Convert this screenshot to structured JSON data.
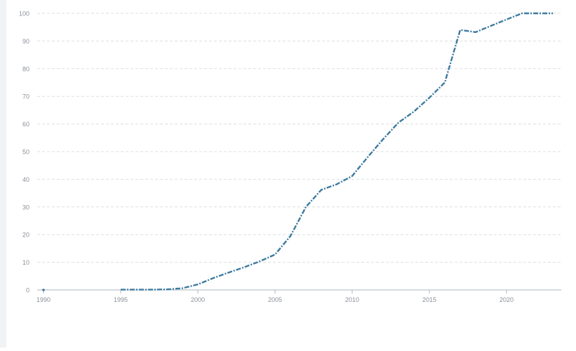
{
  "chart_data": {
    "type": "line",
    "title": "",
    "xlabel": "",
    "ylabel": "",
    "xlim": [
      1990,
      2023
    ],
    "ylim": [
      0,
      100
    ],
    "x_ticks": [
      "1990",
      "1995",
      "2000",
      "2005",
      "2010",
      "2015",
      "2020"
    ],
    "y_ticks": [
      "0",
      "10",
      "20",
      "30",
      "40",
      "50",
      "60",
      "70",
      "80",
      "90",
      "100"
    ],
    "grid": "horizontal-dashed",
    "line_style": "dash-dot",
    "series": [
      {
        "color": "#3d7aa0",
        "points": [
          {
            "x": 1990,
            "y": 0
          },
          {
            "x": 1995,
            "y": 0.1
          },
          {
            "x": 1996,
            "y": 0.1
          },
          {
            "x": 1997,
            "y": 0.1
          },
          {
            "x": 1998,
            "y": 0.2
          },
          {
            "x": 1999,
            "y": 0.6
          },
          {
            "x": 2000,
            "y": 2.0
          },
          {
            "x": 2001,
            "y": 4.3
          },
          {
            "x": 2002,
            "y": 6.3
          },
          {
            "x": 2003,
            "y": 8.2
          },
          {
            "x": 2004,
            "y": 10.3
          },
          {
            "x": 2005,
            "y": 12.8
          },
          {
            "x": 2006,
            "y": 19.5
          },
          {
            "x": 2007,
            "y": 30.0
          },
          {
            "x": 2008,
            "y": 36.2
          },
          {
            "x": 2009,
            "y": 38.2
          },
          {
            "x": 2010,
            "y": 41.2
          },
          {
            "x": 2011,
            "y": 48.0
          },
          {
            "x": 2012,
            "y": 54.5
          },
          {
            "x": 2013,
            "y": 60.5
          },
          {
            "x": 2014,
            "y": 64.5
          },
          {
            "x": 2015,
            "y": 69.5
          },
          {
            "x": 2016,
            "y": 75.0
          },
          {
            "x": 2017,
            "y": 94.0
          },
          {
            "x": 2018,
            "y": 93.2
          },
          {
            "x": 2019,
            "y": 95.5
          },
          {
            "x": 2020,
            "y": 97.8
          },
          {
            "x": 2021,
            "y": 100
          },
          {
            "x": 2022,
            "y": 100
          },
          {
            "x": 2023,
            "y": 100
          }
        ]
      }
    ]
  }
}
